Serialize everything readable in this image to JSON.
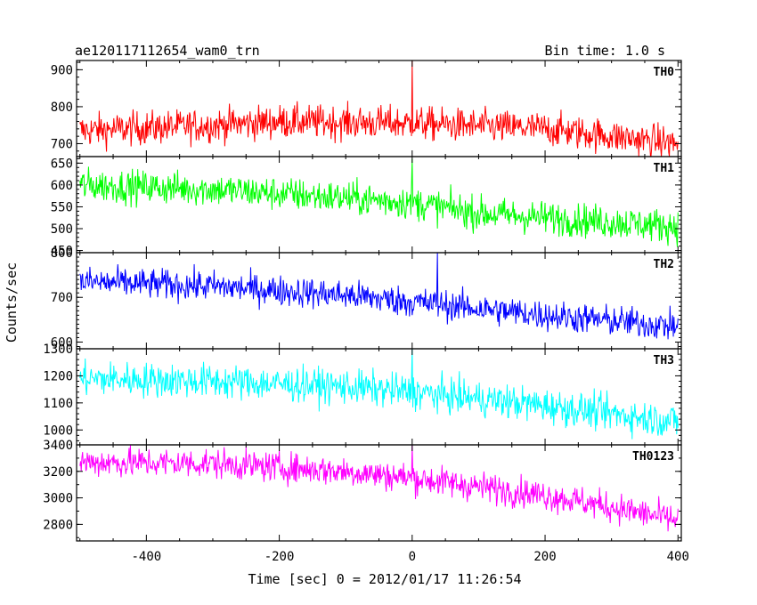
{
  "chart_data": {
    "type": "line",
    "title": "ae120117112654_wam0_trn",
    "bin_time": "Bin time: 1.0 s",
    "xlabel": "Time [sec] 0 = 2012/01/17 11:26:54",
    "ylabel": "Counts/sec",
    "xlim": [
      -505,
      405
    ],
    "x_ticks": [
      -400,
      -200,
      0,
      200,
      400
    ],
    "x_range": [
      -500,
      400
    ],
    "grid": false,
    "panels": [
      {
        "name": "TH0",
        "color": "#ff0000",
        "ylim": [
          665,
          925
        ],
        "y_ticks": [
          700,
          800,
          900
        ],
        "trend": [
          [
            -500,
            735
          ],
          [
            -300,
            750
          ],
          [
            -200,
            760
          ],
          [
            0,
            755
          ],
          [
            200,
            740
          ],
          [
            400,
            700
          ]
        ],
        "noise": 32,
        "spike": {
          "x": 0,
          "y": 925
        }
      },
      {
        "name": "TH1",
        "color": "#00ff00",
        "ylim": [
          445,
          665
        ],
        "y_ticks": [
          450,
          500,
          550,
          600,
          650
        ],
        "trend": [
          [
            -500,
            600
          ],
          [
            -300,
            590
          ],
          [
            -100,
            570
          ],
          [
            0,
            560
          ],
          [
            100,
            535
          ],
          [
            200,
            525
          ],
          [
            400,
            505
          ]
        ],
        "noise": 27,
        "spike": {
          "x": 0,
          "y": 660
        }
      },
      {
        "name": "TH2",
        "color": "#0000ff",
        "ylim": [
          585,
          800
        ],
        "y_ticks": [
          600,
          700,
          800
        ],
        "trend": [
          [
            -500,
            735
          ],
          [
            -300,
            725
          ],
          [
            -100,
            705
          ],
          [
            0,
            690
          ],
          [
            200,
            660
          ],
          [
            400,
            635
          ]
        ],
        "noise": 24,
        "spike": {
          "x": 38,
          "y": 800
        }
      },
      {
        "name": "TH3",
        "color": "#00ffff",
        "ylim": [
          945,
          1300
        ],
        "y_ticks": [
          1000,
          1100,
          1200,
          1300
        ],
        "trend": [
          [
            -500,
            1190
          ],
          [
            -300,
            1180
          ],
          [
            -100,
            1160
          ],
          [
            0,
            1140
          ],
          [
            200,
            1090
          ],
          [
            400,
            1030
          ]
        ],
        "noise": 45,
        "spike": {
          "x": 0,
          "y": 1300
        }
      },
      {
        "name": "TH0123",
        "color": "#ff00ff",
        "ylim": [
          2675,
          3400
        ],
        "y_ticks": [
          2800,
          3000,
          3200,
          3400
        ],
        "trend": [
          [
            -500,
            3270
          ],
          [
            -300,
            3260
          ],
          [
            -100,
            3200
          ],
          [
            0,
            3150
          ],
          [
            200,
            3020
          ],
          [
            300,
            2930
          ],
          [
            400,
            2830
          ]
        ],
        "noise": 80,
        "spike": {
          "x": 0,
          "y": 3400
        }
      }
    ]
  }
}
